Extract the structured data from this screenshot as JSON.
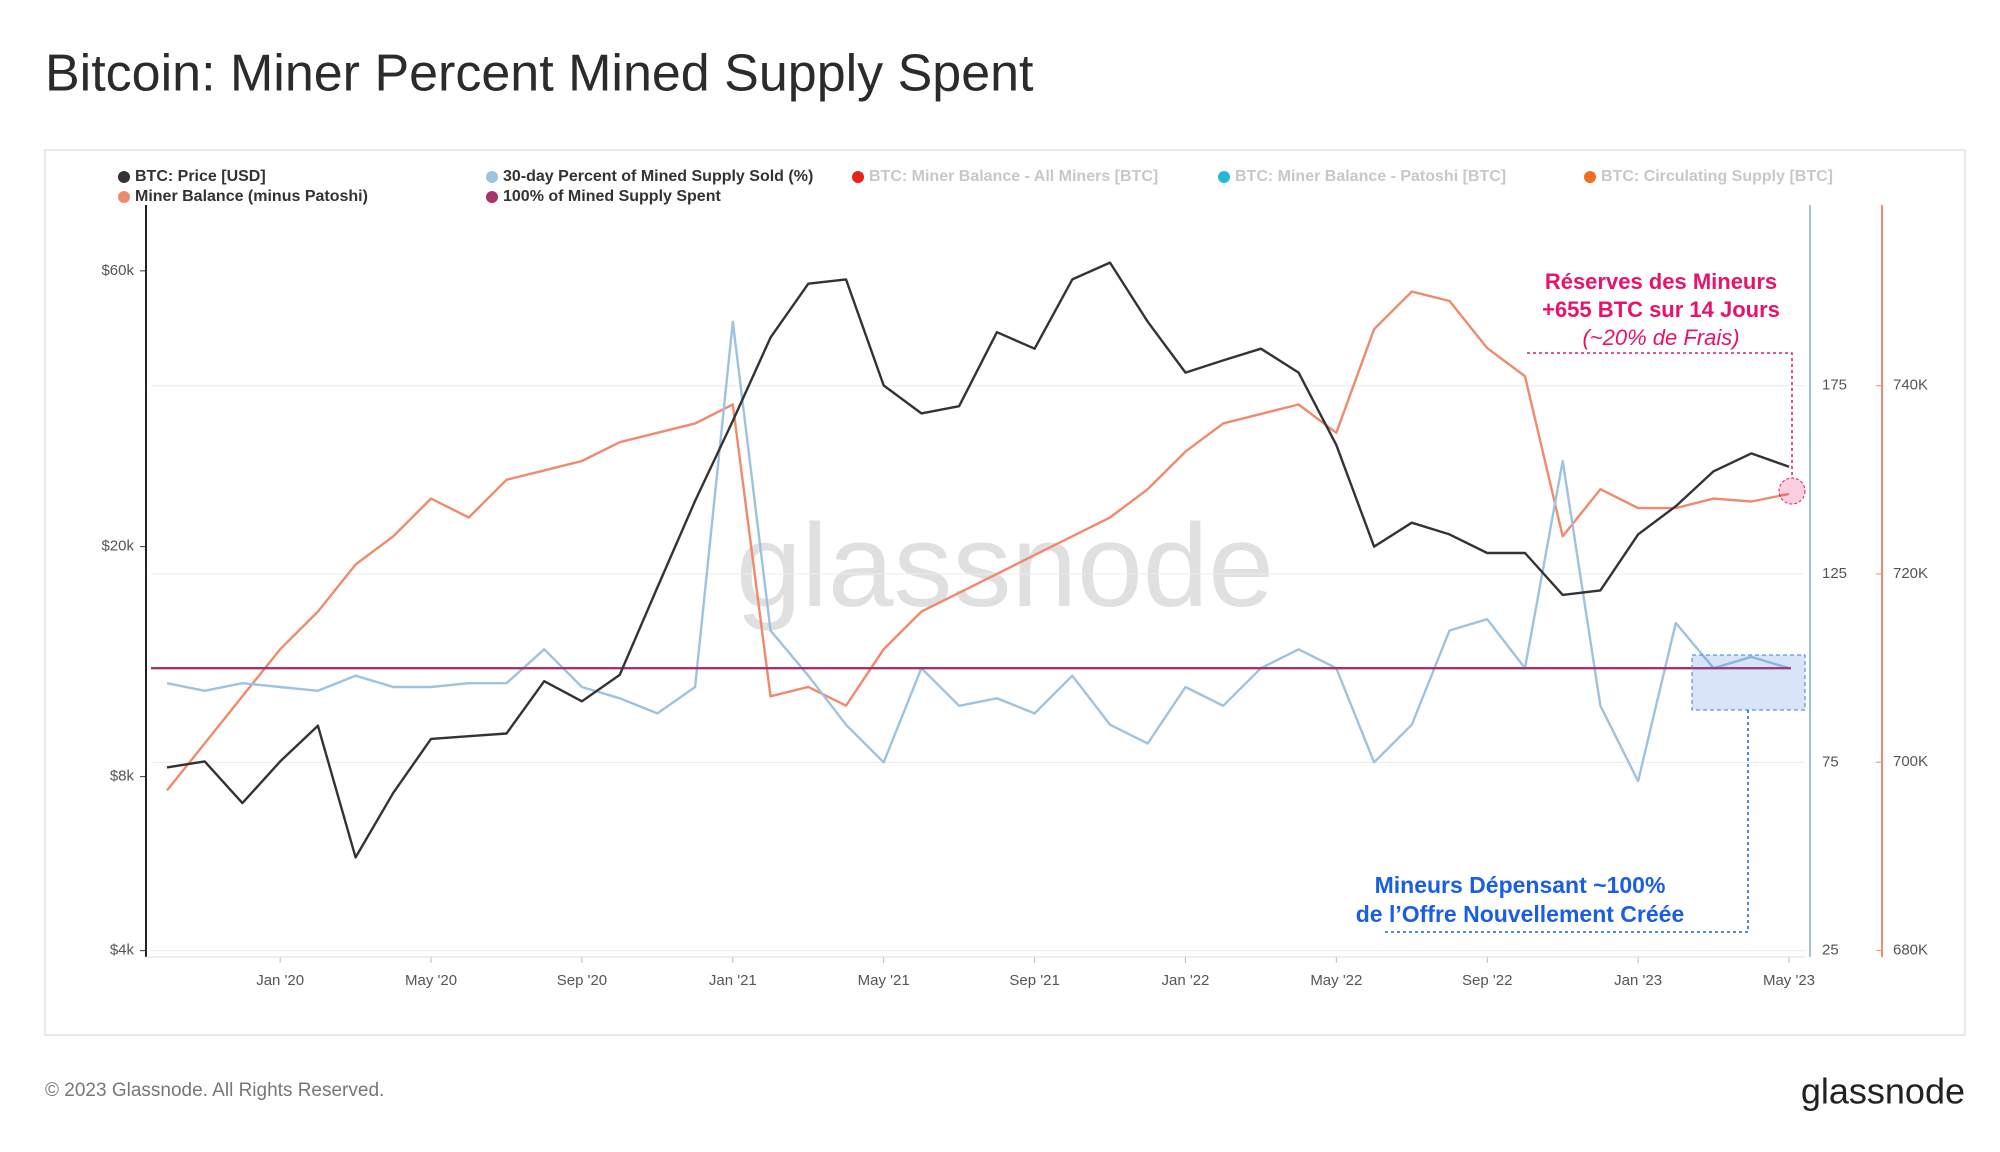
{
  "chart_data": {
    "type": "line",
    "title": "Bitcoin: Miner Percent Mined Supply Spent",
    "x": [
      "2019-10",
      "2019-11",
      "2019-12",
      "2020-01",
      "2020-02",
      "2020-03",
      "2020-04",
      "2020-05",
      "2020-06",
      "2020-07",
      "2020-08",
      "2020-09",
      "2020-10",
      "2020-11",
      "2020-12",
      "2021-01",
      "2021-02",
      "2021-03",
      "2021-04",
      "2021-05",
      "2021-06",
      "2021-07",
      "2021-08",
      "2021-09",
      "2021-10",
      "2021-11",
      "2021-12",
      "2022-01",
      "2022-02",
      "2022-03",
      "2022-04",
      "2022-05",
      "2022-06",
      "2022-07",
      "2022-08",
      "2022-09",
      "2022-10",
      "2022-11",
      "2022-12",
      "2023-01",
      "2023-02",
      "2023-03",
      "2023-04",
      "2023-05"
    ],
    "xlim": [
      "2019-10",
      "2023-05"
    ],
    "xticks": [
      {
        "value": "2020-01",
        "label": "Jan '20"
      },
      {
        "value": "2020-05",
        "label": "May '20"
      },
      {
        "value": "2020-09",
        "label": "Sep '20"
      },
      {
        "value": "2021-01",
        "label": "Jan '21"
      },
      {
        "value": "2021-05",
        "label": "May '21"
      },
      {
        "value": "2021-09",
        "label": "Sep '21"
      },
      {
        "value": "2022-01",
        "label": "Jan '22"
      },
      {
        "value": "2022-05",
        "label": "May '22"
      },
      {
        "value": "2022-09",
        "label": "Sep '22"
      },
      {
        "value": "2023-01",
        "label": "Jan '23"
      },
      {
        "value": "2023-05",
        "label": "May '23"
      }
    ],
    "ylim": [
      3900,
      78000
    ],
    "ylog": true,
    "yticks": [
      {
        "value": 4000,
        "label": "$4k"
      },
      {
        "value": 8000,
        "label": "$8k"
      },
      {
        "value": 20000,
        "label": "$20k"
      },
      {
        "value": 60000,
        "label": "$60k"
      }
    ],
    "y2lim": [
      23.3,
      223
    ],
    "y2ticks": [
      25,
      75,
      125,
      175
    ],
    "y2color": "#9dc3e0",
    "y3lim": [
      679300,
      759200
    ],
    "y3color": "#f08a6c",
    "y3ticks": [
      {
        "value": 680000,
        "label": "680K"
      },
      {
        "value": 700000,
        "label": "700K"
      },
      {
        "value": 720000,
        "label": "720K"
      },
      {
        "value": 740000,
        "label": "740K"
      }
    ],
    "grid": true,
    "series": [
      {
        "name": "BTC: Price [USD]",
        "color": "#333333",
        "axis": "y",
        "values": [
          8300,
          8500,
          7200,
          8500,
          9800,
          5800,
          7500,
          9300,
          9400,
          9500,
          11700,
          10800,
          12000,
          17000,
          24000,
          33000,
          46000,
          57000,
          58000,
          38000,
          34000,
          35000,
          47000,
          44000,
          58000,
          62000,
          49000,
          40000,
          42000,
          44000,
          40000,
          30000,
          20000,
          22000,
          21000,
          19500,
          19500,
          16500,
          16800,
          21000,
          23500,
          27000,
          29000,
          27500
        ]
      },
      {
        "name": "30-day Percent of Mined Supply Sold (%)",
        "color": "#9dc3e0",
        "axis": "y2",
        "values": [
          96,
          94,
          96,
          95,
          94,
          98,
          95,
          95,
          96,
          96,
          105,
          95,
          92,
          88,
          95,
          192,
          110,
          98,
          85,
          75,
          100,
          90,
          92,
          88,
          98,
          85,
          80,
          95,
          90,
          100,
          105,
          100,
          75,
          85,
          110,
          113,
          100,
          155,
          90,
          70,
          112,
          100,
          103,
          100
        ]
      },
      {
        "name": "Miner Balance (minus Patoshi)",
        "color": "#f08a6c",
        "axis": "y3",
        "values": [
          697000,
          702000,
          707000,
          712000,
          716000,
          721000,
          724000,
          728000,
          726000,
          730000,
          731000,
          732000,
          734000,
          735000,
          736000,
          738000,
          707000,
          708000,
          706000,
          712000,
          716000,
          718000,
          720000,
          722000,
          724000,
          726000,
          729000,
          733000,
          736000,
          737000,
          738000,
          735000,
          746000,
          750000,
          749000,
          744000,
          741000,
          724000,
          729000,
          727000,
          727000,
          728000,
          727700,
          728500
        ]
      }
    ],
    "reference_line": {
      "name": "100% of Mined Supply Spent",
      "color": "#a8336b",
      "axis": "y2",
      "value": 100
    },
    "legend_inactive": [
      {
        "name": "BTC: Miner Balance - All Miners [BTC]",
        "color": "#e8241a"
      },
      {
        "name": "BTC: Miner Balance - Patoshi [BTC]",
        "color": "#22b8d8"
      },
      {
        "name": "BTC: Circulating Supply [BTC]",
        "color": "#f26d21"
      }
    ],
    "annotations": {
      "reserves": [
        "Réserves des Mineurs",
        "+655 BTC sur 14 Jours",
        "(~20% de Frais)"
      ],
      "spending": [
        "Mineurs Dépensant ~100%",
        "de l’Offre Nouvellement Créée"
      ]
    },
    "watermark": "glassnode"
  },
  "footer": {
    "copyright": "© 2023 Glassnode. All Rights Reserved.",
    "logo": "glassnode"
  }
}
